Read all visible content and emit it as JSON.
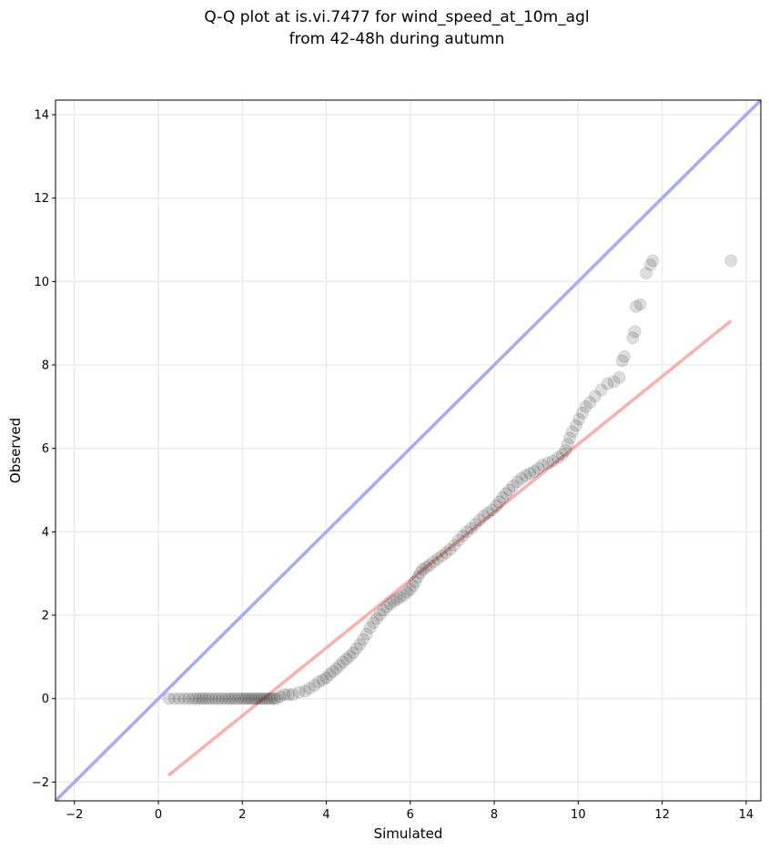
{
  "chart_data": {
    "type": "scatter",
    "title_lines": [
      "Q-Q plot at is.vi.7477 for wind_speed_at_10m_agl",
      "from 42-48h during autumn"
    ],
    "xlabel": "Simulated",
    "ylabel": "Observed",
    "xlim": [
      -2.45,
      14.35
    ],
    "ylim": [
      -2.45,
      14.35
    ],
    "xticks": [
      -2,
      0,
      2,
      4,
      6,
      8,
      10,
      12,
      14
    ],
    "yticks": [
      -2,
      0,
      2,
      4,
      6,
      8,
      10,
      12,
      14
    ],
    "xtick_labels": [
      "−2",
      "0",
      "2",
      "4",
      "6",
      "8",
      "10",
      "12",
      "14"
    ],
    "ytick_labels": [
      "−2",
      "0",
      "2",
      "4",
      "6",
      "8",
      "10",
      "12",
      "14"
    ],
    "grid": true,
    "colors": {
      "identity_line": "#a9a9f5",
      "fit_line": "#f5a9a9",
      "points": "#000000",
      "grid": "#ebebeb"
    },
    "identity_line": {
      "x": [
        -2.45,
        14.35
      ],
      "y": [
        -2.45,
        14.35
      ]
    },
    "fit_line": {
      "x": [
        0.24,
        13.64
      ],
      "y": [
        -1.84,
        9.06
      ]
    },
    "points": [
      [
        0.25,
        0.0
      ],
      [
        0.38,
        0.0
      ],
      [
        0.5,
        0.0
      ],
      [
        0.62,
        0.0
      ],
      [
        0.72,
        0.0
      ],
      [
        0.82,
        0.0
      ],
      [
        0.9,
        0.0
      ],
      [
        0.98,
        0.0
      ],
      [
        1.05,
        0.0
      ],
      [
        1.12,
        0.0
      ],
      [
        1.2,
        0.0
      ],
      [
        1.28,
        0.0
      ],
      [
        1.36,
        0.0
      ],
      [
        1.44,
        0.0
      ],
      [
        1.52,
        0.0
      ],
      [
        1.6,
        0.0
      ],
      [
        1.68,
        0.0
      ],
      [
        1.75,
        0.0
      ],
      [
        1.82,
        0.0
      ],
      [
        1.9,
        0.0
      ],
      [
        1.97,
        0.0
      ],
      [
        2.04,
        0.0
      ],
      [
        2.1,
        0.0
      ],
      [
        2.16,
        0.0
      ],
      [
        2.22,
        0.0
      ],
      [
        2.28,
        0.0
      ],
      [
        2.34,
        0.0
      ],
      [
        2.4,
        0.0
      ],
      [
        2.46,
        0.0
      ],
      [
        2.52,
        0.0
      ],
      [
        2.58,
        0.0
      ],
      [
        2.64,
        0.0
      ],
      [
        2.7,
        0.0
      ],
      [
        2.76,
        0.0
      ],
      [
        2.82,
        0.0
      ],
      [
        2.9,
        0.05
      ],
      [
        3.0,
        0.1
      ],
      [
        3.1,
        0.1
      ],
      [
        3.2,
        0.1
      ],
      [
        3.35,
        0.15
      ],
      [
        3.5,
        0.18
      ],
      [
        3.6,
        0.25
      ],
      [
        3.72,
        0.32
      ],
      [
        3.82,
        0.4
      ],
      [
        3.92,
        0.45
      ],
      [
        4.0,
        0.5
      ],
      [
        4.08,
        0.58
      ],
      [
        4.16,
        0.65
      ],
      [
        4.24,
        0.72
      ],
      [
        4.32,
        0.8
      ],
      [
        4.4,
        0.88
      ],
      [
        4.48,
        0.95
      ],
      [
        4.56,
        1.02
      ],
      [
        4.64,
        1.1
      ],
      [
        4.72,
        1.2
      ],
      [
        4.8,
        1.3
      ],
      [
        4.88,
        1.42
      ],
      [
        4.96,
        1.55
      ],
      [
        5.04,
        1.7
      ],
      [
        5.12,
        1.82
      ],
      [
        5.2,
        1.92
      ],
      [
        5.28,
        2.02
      ],
      [
        5.36,
        2.12
      ],
      [
        5.44,
        2.2
      ],
      [
        5.52,
        2.27
      ],
      [
        5.6,
        2.33
      ],
      [
        5.68,
        2.38
      ],
      [
        5.76,
        2.43
      ],
      [
        5.84,
        2.48
      ],
      [
        5.92,
        2.55
      ],
      [
        6.0,
        2.62
      ],
      [
        6.06,
        2.7
      ],
      [
        6.12,
        2.8
      ],
      [
        6.18,
        2.92
      ],
      [
        6.24,
        3.02
      ],
      [
        6.3,
        3.1
      ],
      [
        6.38,
        3.15
      ],
      [
        6.46,
        3.2
      ],
      [
        6.55,
        3.28
      ],
      [
        6.65,
        3.35
      ],
      [
        6.75,
        3.42
      ],
      [
        6.85,
        3.5
      ],
      [
        6.95,
        3.58
      ],
      [
        7.05,
        3.68
      ],
      [
        7.15,
        3.8
      ],
      [
        7.25,
        3.9
      ],
      [
        7.35,
        4.0
      ],
      [
        7.45,
        4.08
      ],
      [
        7.55,
        4.18
      ],
      [
        7.65,
        4.28
      ],
      [
        7.75,
        4.38
      ],
      [
        7.85,
        4.45
      ],
      [
        7.95,
        4.52
      ],
      [
        8.05,
        4.62
      ],
      [
        8.12,
        4.72
      ],
      [
        8.2,
        4.82
      ],
      [
        8.28,
        4.92
      ],
      [
        8.36,
        5.0
      ],
      [
        8.45,
        5.1
      ],
      [
        8.55,
        5.2
      ],
      [
        8.65,
        5.28
      ],
      [
        8.75,
        5.35
      ],
      [
        8.85,
        5.4
      ],
      [
        8.95,
        5.45
      ],
      [
        9.05,
        5.52
      ],
      [
        9.15,
        5.6
      ],
      [
        9.28,
        5.65
      ],
      [
        9.4,
        5.7
      ],
      [
        9.52,
        5.78
      ],
      [
        9.62,
        5.85
      ],
      [
        9.7,
        5.95
      ],
      [
        9.75,
        6.1
      ],
      [
        9.8,
        6.25
      ],
      [
        9.86,
        6.4
      ],
      [
        9.95,
        6.55
      ],
      [
        10.02,
        6.7
      ],
      [
        10.1,
        6.85
      ],
      [
        10.18,
        7.0
      ],
      [
        10.28,
        7.1
      ],
      [
        10.4,
        7.25
      ],
      [
        10.55,
        7.4
      ],
      [
        10.7,
        7.55
      ],
      [
        10.85,
        7.6
      ],
      [
        10.98,
        7.7
      ],
      [
        11.05,
        8.1
      ],
      [
        11.1,
        8.2
      ],
      [
        11.3,
        8.65
      ],
      [
        11.35,
        8.8
      ],
      [
        11.38,
        9.4
      ],
      [
        11.48,
        9.45
      ],
      [
        11.62,
        10.2
      ],
      [
        11.72,
        10.4
      ],
      [
        11.78,
        10.5
      ],
      [
        13.64,
        10.5
      ]
    ]
  }
}
